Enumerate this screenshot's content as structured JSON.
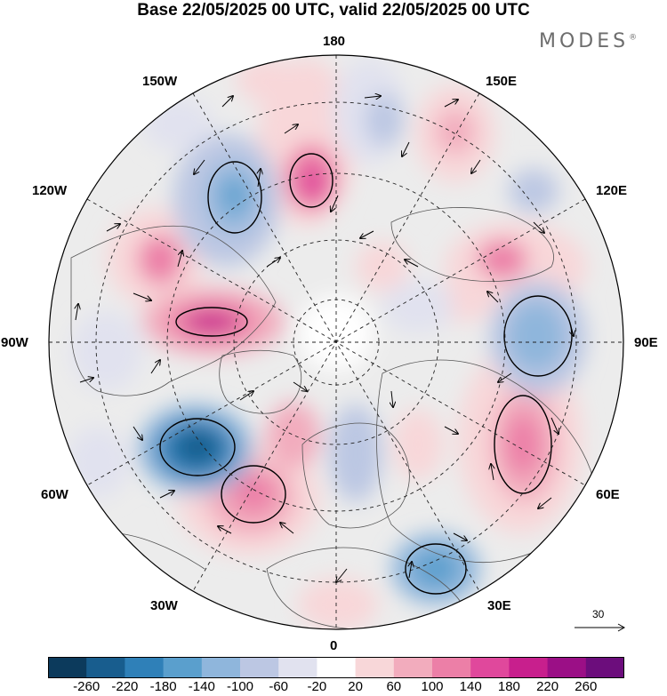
{
  "title": "Base 22/05/2025 00 UTC, valid 22/05/2025 00 UTC",
  "brand": "MODES",
  "brand_mark": "®",
  "longitude_labels": {
    "lon_180": "180",
    "lon_150E": "150E",
    "lon_120E": "120E",
    "lon_90E": "90E",
    "lon_60E": "60E",
    "lon_30E": "30E",
    "lon_0": "0",
    "lon_30W": "30W",
    "lon_60W": "60W",
    "lon_90W": "90W",
    "lon_120W": "120W",
    "lon_150W": "150W"
  },
  "reference_vector": {
    "value": "30"
  },
  "colorbar": {
    "ticks": [
      "-260",
      "-220",
      "-180",
      "-140",
      "-100",
      "-60",
      "-20",
      "20",
      "60",
      "100",
      "140",
      "180",
      "220",
      "260"
    ],
    "colors": [
      "#0c3a5c",
      "#185d8e",
      "#2f80b8",
      "#5a9fcd",
      "#8fb6dc",
      "#bcc7e3",
      "#e1e2ef",
      "#ffffff",
      "#f8d7d9",
      "#f2acbd",
      "#ec7fa7",
      "#e0489c",
      "#c81f8d",
      "#9b0f86",
      "#6c0d7c"
    ]
  },
  "map_colors": {
    "ocean": "#ffffff",
    "neutral_field": "#ececec",
    "coast": "#555555",
    "grid": "#222222"
  }
}
